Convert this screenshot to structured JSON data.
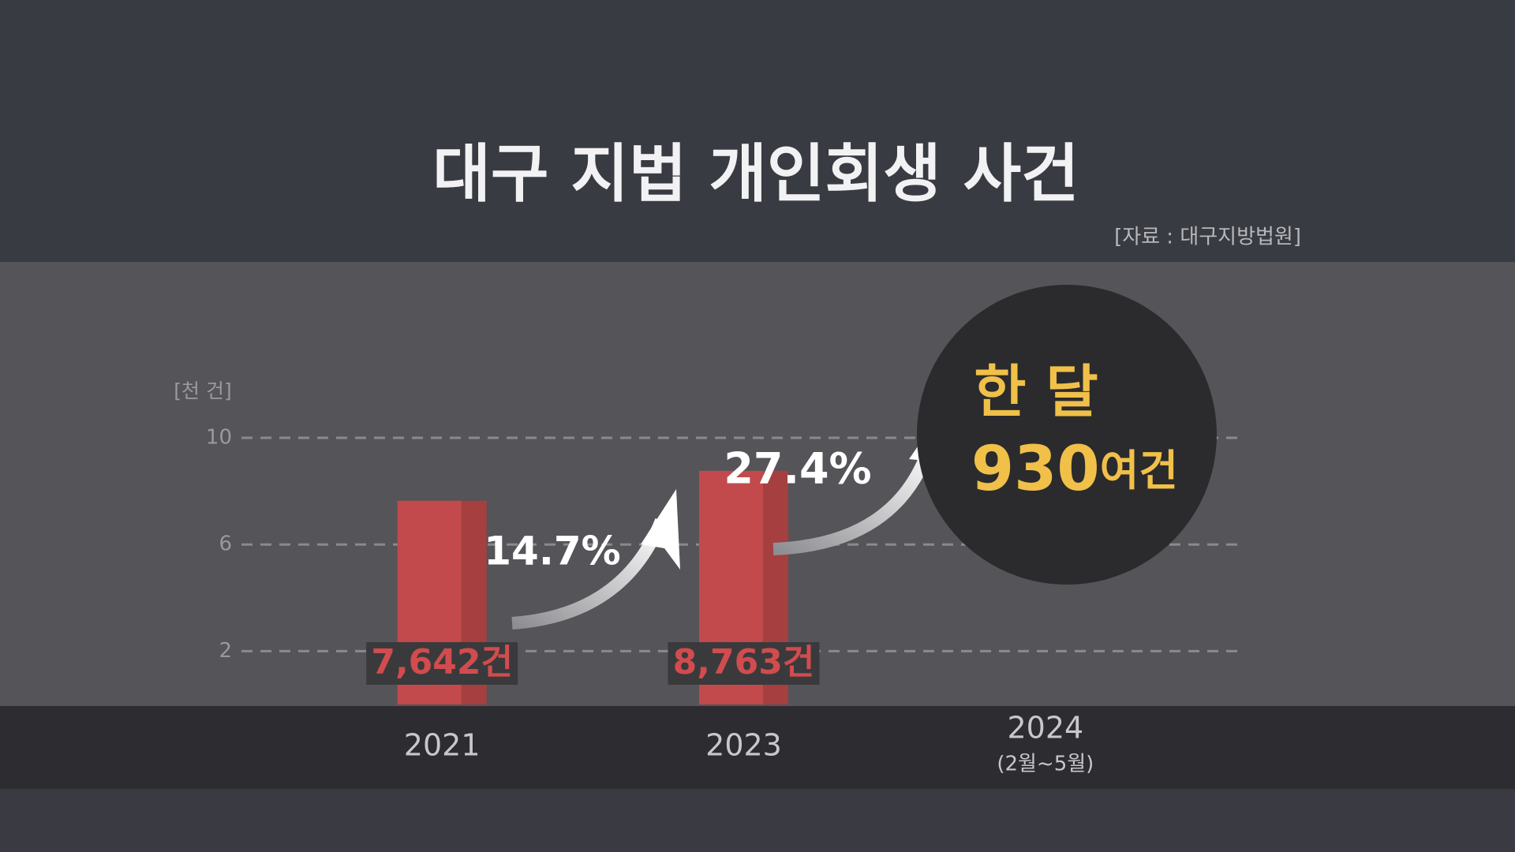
{
  "chart_data": {
    "type": "bar",
    "title": "대구 지법 개인회생 사건",
    "source": "[자료 : 대구지방법원]",
    "y_label": "[천 건]",
    "categories": [
      "2021",
      "2023",
      "2024"
    ],
    "category_sublabels": [
      null,
      null,
      "(2월~5월)"
    ],
    "values": [
      7.642,
      8.763,
      null
    ],
    "value_labels": [
      "7,642건",
      "8,763건",
      null
    ],
    "color": "#c24a4c",
    "ylim": [
      0,
      10
    ],
    "yticks": [
      2,
      6,
      10
    ],
    "grid": true,
    "annotations": [
      "14.7%",
      "27.4%"
    ],
    "callout": {
      "title": "한 달",
      "number": "930",
      "unit": "여건"
    }
  }
}
